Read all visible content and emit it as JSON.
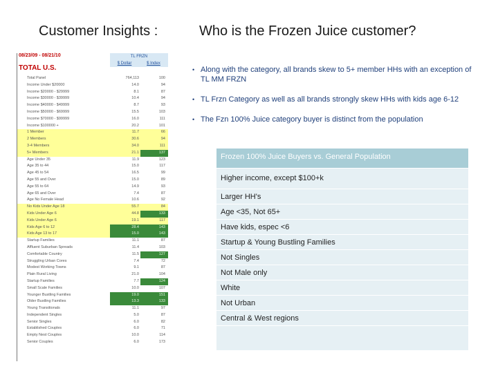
{
  "header": {
    "left_title": "Customer Insights :",
    "right_title": "Who is the Frozen Juice customer?"
  },
  "sheet": {
    "date_range": "08/23/09 - 08/21/10",
    "region": "TOTAL U.S.",
    "column_group": "TL FRZN",
    "columns": [
      "$ Dollar",
      "$ Index"
    ],
    "rows": [
      {
        "label": "Total Panel",
        "v1": "764,113",
        "v2": "100",
        "hl": false,
        "g1": false,
        "g2": false
      },
      {
        "label": "Income Under $20000",
        "v1": "14.0",
        "v2": "94",
        "hl": false,
        "g1": false,
        "g2": false
      },
      {
        "label": "Income $20000 - $29999",
        "v1": "8.1",
        "v2": "87",
        "hl": false,
        "g1": false,
        "g2": false
      },
      {
        "label": "Income $30000 - $39999",
        "v1": "10.4",
        "v2": "94",
        "hl": false,
        "g1": false,
        "g2": false
      },
      {
        "label": "Income $40000 - $49999",
        "v1": "8.7",
        "v2": "93",
        "hl": false,
        "g1": false,
        "g2": false
      },
      {
        "label": "Income $50000 - $69999",
        "v1": "15.5",
        "v2": "103",
        "hl": false,
        "g1": false,
        "g2": false
      },
      {
        "label": "Income $70000 - $99999",
        "v1": "16.0",
        "v2": "111",
        "hl": false,
        "g1": false,
        "g2": false
      },
      {
        "label": "Income $100000 +",
        "v1": "20.2",
        "v2": "101",
        "hl": false,
        "g1": false,
        "g2": false
      },
      {
        "label": "1 Member",
        "v1": "11.7",
        "v2": "66",
        "hl": true,
        "g1": false,
        "g2": false
      },
      {
        "label": "2 Members",
        "v1": "30.6",
        "v2": "94",
        "hl": true,
        "g1": false,
        "g2": false
      },
      {
        "label": "3-4 Members",
        "v1": "34.0",
        "v2": "111",
        "hl": true,
        "g1": false,
        "g2": false
      },
      {
        "label": "5+ Members",
        "v1": "21.1",
        "v2": "137",
        "hl": true,
        "g1": false,
        "g2": true
      },
      {
        "label": "Age Under 35",
        "v1": "11.9",
        "v2": "123",
        "hl": false,
        "g1": false,
        "g2": false
      },
      {
        "label": "Age 35 to 44",
        "v1": "15.0",
        "v2": "117",
        "hl": false,
        "g1": false,
        "g2": false
      },
      {
        "label": "Age 45 to 54",
        "v1": "16.5",
        "v2": "99",
        "hl": false,
        "g1": false,
        "g2": false
      },
      {
        "label": "Age 55 and Over",
        "v1": "15.0",
        "v2": "89",
        "hl": false,
        "g1": false,
        "g2": false
      },
      {
        "label": "Age 55 to 64",
        "v1": "14.9",
        "v2": "93",
        "hl": false,
        "g1": false,
        "g2": false
      },
      {
        "label": "Age 65 and Over",
        "v1": "7.4",
        "v2": "87",
        "hl": false,
        "g1": false,
        "g2": false
      },
      {
        "label": "Age No Female Head",
        "v1": "10.6",
        "v2": "92",
        "hl": false,
        "g1": false,
        "g2": false
      },
      {
        "label": "No Kids Under Age 18",
        "v1": "55.7",
        "v2": "84",
        "hl": true,
        "g1": false,
        "g2": false
      },
      {
        "label": "Kids Under Age 6",
        "v1": "44.8",
        "v2": "133",
        "hl": true,
        "g1": false,
        "g2": true
      },
      {
        "label": "Kids Under Age 6",
        "v1": "19.1",
        "v2": "117",
        "hl": true,
        "g1": false,
        "g2": false
      },
      {
        "label": "Kids Age 6 to 12",
        "v1": "28.4",
        "v2": "143",
        "hl": true,
        "g1": true,
        "g2": true
      },
      {
        "label": "Kids Age 13 to 17",
        "v1": "15.0",
        "v2": "143",
        "hl": true,
        "g1": true,
        "g2": true
      },
      {
        "label": "Startup Families",
        "v1": "11.1",
        "v2": "87",
        "hl": false,
        "g1": false,
        "g2": false
      },
      {
        "label": "Affluent Suburban Spreads",
        "v1": "11.4",
        "v2": "103",
        "hl": false,
        "g1": false,
        "g2": false
      },
      {
        "label": "Comfortable Country",
        "v1": "11.5",
        "v2": "127",
        "hl": false,
        "g1": false,
        "g2": true
      },
      {
        "label": "Struggling Urban Cores",
        "v1": "7.4",
        "v2": "72",
        "hl": false,
        "g1": false,
        "g2": false
      },
      {
        "label": "Modest Working Towns",
        "v1": "9.1",
        "v2": "87",
        "hl": false,
        "g1": false,
        "g2": false
      },
      {
        "label": "Plain Rural Living",
        "v1": "21.0",
        "v2": "104",
        "hl": false,
        "g1": false,
        "g2": false
      },
      {
        "label": "Startup Families",
        "v1": "7.7",
        "v2": "124",
        "hl": false,
        "g1": false,
        "g2": true
      },
      {
        "label": "Small Scale Families",
        "v1": "10.0",
        "v2": "107",
        "hl": false,
        "g1": false,
        "g2": false
      },
      {
        "label": "Younger Bustling Families",
        "v1": "19.0",
        "v2": "151",
        "hl": false,
        "g1": true,
        "g2": true
      },
      {
        "label": "Older Bustling Families",
        "v1": "13.3",
        "v2": "133",
        "hl": false,
        "g1": true,
        "g2": true
      },
      {
        "label": "Young Transitionals",
        "v1": "11.1",
        "v2": "97",
        "hl": false,
        "g1": false,
        "g2": false
      },
      {
        "label": "Independent Singles",
        "v1": "5.0",
        "v2": "87",
        "hl": false,
        "g1": false,
        "g2": false
      },
      {
        "label": "Senior Singles",
        "v1": "6.0",
        "v2": "82",
        "hl": false,
        "g1": false,
        "g2": false
      },
      {
        "label": "Established Couples",
        "v1": "6.0",
        "v2": "71",
        "hl": false,
        "g1": false,
        "g2": false
      },
      {
        "label": "Empty Nest Couples",
        "v1": "10.0",
        "v2": "114",
        "hl": false,
        "g1": false,
        "g2": false
      },
      {
        "label": "Senior Couples",
        "v1": "6.0",
        "v2": "173",
        "hl": false,
        "g1": false,
        "g2": false
      }
    ]
  },
  "bullets": [
    "Along with the category, all brands skew to 5+ member HHs with an exception of TL MM FRZN",
    "TL Frzn Category as well as all brands strongly skew HHs with kids age 6-12",
    "The Fzn 100% Juice category buyer is distinct from the population"
  ],
  "findings_table": {
    "header": "Frozen 100% Juice Buyers vs. General Population",
    "rows": [
      "Higher income, except $100+k",
      "Larger HH's",
      "Age <35, Not 65+",
      "Have kids, espec <6",
      "Startup & Young Bustling Families",
      "Not Singles",
      "Not Male only",
      "White",
      "Not Urban",
      "Central & West regions",
      ""
    ]
  },
  "colors": {
    "title_text": "#1a1a1a",
    "bullet_text": "#1f3f7a",
    "sheet_red": "#c00000",
    "highlight_yellow": "#ffff99",
    "highlight_green": "#3a8a3a",
    "table_header_bg": "#a8cdd6",
    "table_row_bg": "#e6f0f4"
  }
}
